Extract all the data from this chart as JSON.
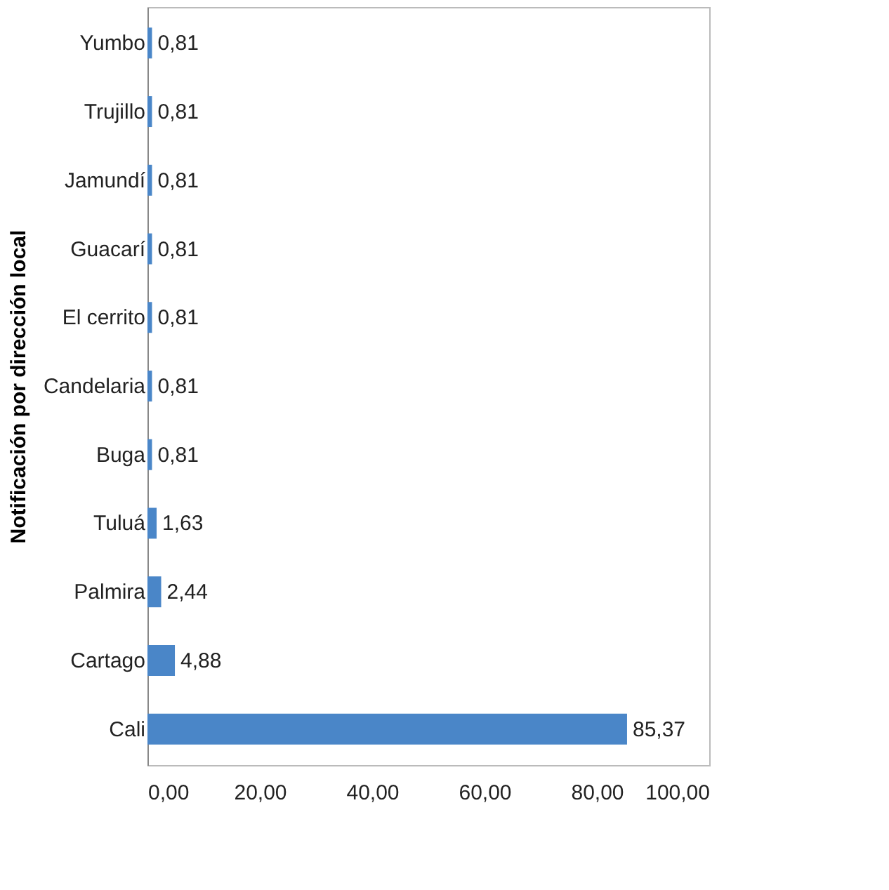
{
  "chart_data": {
    "type": "bar",
    "orientation": "horizontal",
    "ylabel": "Notificación por dirección local",
    "categories": [
      "Yumbo",
      "Trujillo",
      "Jamundí",
      "Guacarí",
      "El cerrito",
      "Candelaria",
      "Buga",
      "Tuluá",
      "Palmira",
      "Cartago",
      "Cali"
    ],
    "values": [
      0.81,
      0.81,
      0.81,
      0.81,
      0.81,
      0.81,
      0.81,
      1.63,
      2.44,
      4.88,
      85.37
    ],
    "value_labels": [
      "0,81",
      "0,81",
      "0,81",
      "0,81",
      "0,81",
      "0,81",
      "0,81",
      "1,63",
      "2,44",
      "4,88",
      "85,37"
    ],
    "color": "#4a86c8",
    "xlim": [
      0,
      100
    ],
    "xticks": [
      {
        "value": 0,
        "label": "0,00"
      },
      {
        "value": 20,
        "label": "20,00"
      },
      {
        "value": 40,
        "label": "40,00"
      },
      {
        "value": 60,
        "label": "60,00"
      },
      {
        "value": 80,
        "label": "80,00"
      },
      {
        "value": 100,
        "label": "100,00"
      }
    ],
    "grid": false
  }
}
